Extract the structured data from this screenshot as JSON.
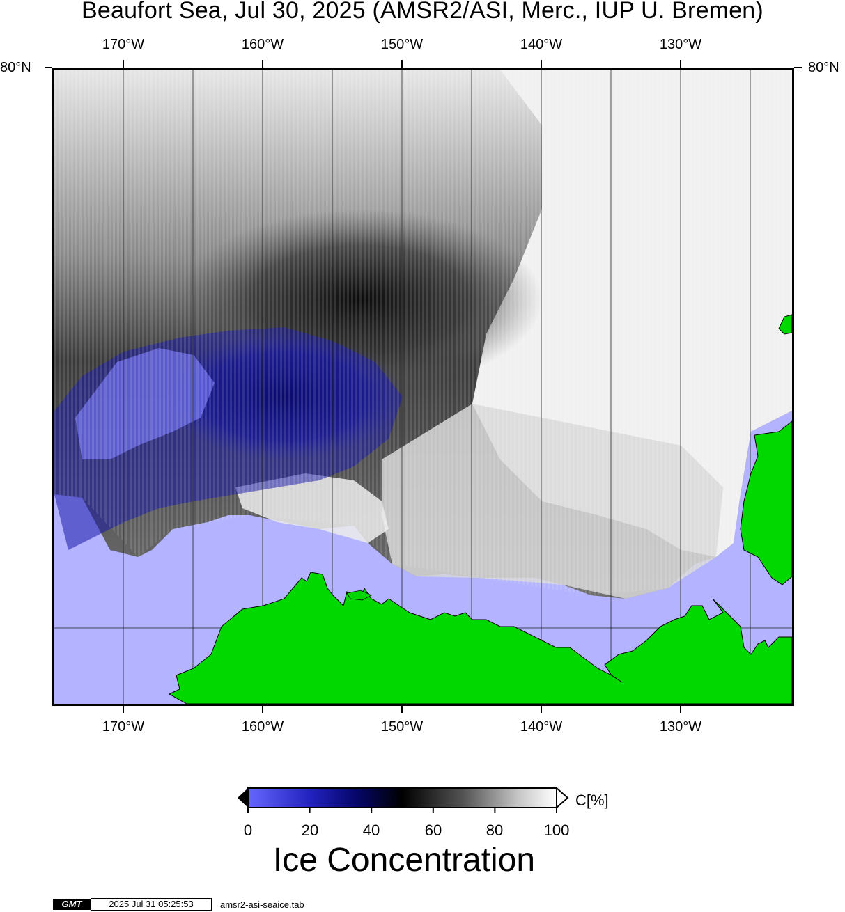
{
  "title": "Beaufort Sea, Jul 30, 2025 (AMSR2/ASI, Merc., IUP U. Bremen)",
  "longitude_labels": [
    "170°W",
    "160°W",
    "150°W",
    "140°W",
    "130°W"
  ],
  "latitude_label": "80°N",
  "colorbar": {
    "unit_label": "C[%]",
    "tick_labels": [
      "0",
      "20",
      "40",
      "60",
      "80",
      "100"
    ]
  },
  "legend_title": "Ice Concentration",
  "footer": {
    "logo": "GMT",
    "timestamp": "2025 Jul 31 05:25:53",
    "filename": "amsr2-asi-seaice.tab"
  },
  "colors": {
    "open_water": "#b3b3ff",
    "land": "#00d800",
    "low_concentration": "#0a0a8a",
    "high_concentration": "#f5f5f5"
  }
}
